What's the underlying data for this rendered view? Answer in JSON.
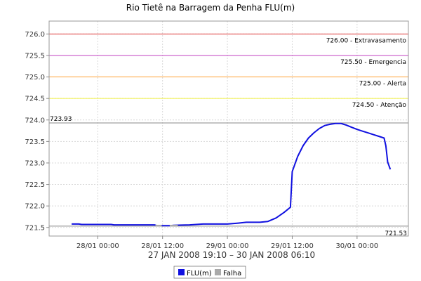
{
  "chart_data": {
    "type": "line",
    "title": "Rio Tietê na Barragem da Penha FLU(m)",
    "subtitle": "27 JAN 2008 19:10 – 30 JAN 2008 06:10",
    "ylim": [
      721.3,
      726.3
    ],
    "yticks": [
      721.5,
      722.0,
      722.5,
      723.0,
      723.5,
      724.0,
      724.5,
      725.0,
      725.5,
      726.0
    ],
    "ytick_labels": [
      "721.5",
      "722.0",
      "722.5",
      "723.0",
      "723.5",
      "724.0",
      "724.5",
      "725.0",
      "725.5",
      "726.0"
    ],
    "xlim": [
      "2008-01-27 15:00",
      "2008-01-30 09:30"
    ],
    "xticks": [
      "2008-01-28 00:00",
      "2008-01-28 12:00",
      "2008-01-29 00:00",
      "2008-01-29 12:00",
      "2008-01-30 00:00"
    ],
    "xtick_labels": [
      "28/01 00:00",
      "28/01 12:00",
      "29/01 00:00",
      "29/01 12:00",
      "30/01 00:00"
    ],
    "grid": true,
    "legend_position": "bottom",
    "reference_lines": [
      {
        "value": 726.0,
        "label": "726.00 - Extravasamento",
        "color": "#e03c3c"
      },
      {
        "value": 725.5,
        "label": "725.50 - Emergencia",
        "color": "#c040c0"
      },
      {
        "value": 725.0,
        "label": "725.00 - Alerta",
        "color": "#ffa030"
      },
      {
        "value": 724.5,
        "label": "724.50 - Atenção",
        "color": "#f0f040"
      }
    ],
    "markers": {
      "max_value": 723.93,
      "max_label": "723.93",
      "min_value": 721.53,
      "min_label": "721.53",
      "color": "#888888"
    },
    "series": [
      {
        "name": "FLU(m)",
        "color": "#1010e0",
        "points": [
          [
            "2008-01-27 19:10",
            721.58
          ],
          [
            "2008-01-27 20:30",
            721.58
          ],
          [
            "2008-01-27 21:00",
            721.57
          ],
          [
            "2008-01-28 02:30",
            721.57
          ],
          [
            "2008-01-28 03:00",
            721.56
          ],
          [
            "2008-01-28 10:30",
            721.56
          ],
          [
            "2008-01-28 11:00",
            721.54
          ],
          [
            "2008-01-28 12:00",
            721.54
          ],
          [
            "2008-01-28 13:30",
            721.54
          ],
          [
            "2008-01-28 14:00",
            721.55
          ],
          [
            "2008-01-28 17:00",
            721.56
          ],
          [
            "2008-01-28 19:30",
            721.58
          ],
          [
            "2008-01-29 00:00",
            721.58
          ],
          [
            "2008-01-29 02:00",
            721.6
          ],
          [
            "2008-01-29 03:30",
            721.62
          ],
          [
            "2008-01-29 06:00",
            721.62
          ],
          [
            "2008-01-29 07:30",
            721.64
          ],
          [
            "2008-01-29 09:00",
            721.72
          ],
          [
            "2008-01-29 10:30",
            721.85
          ],
          [
            "2008-01-29 11:40",
            721.97
          ],
          [
            "2008-01-29 12:00",
            722.8
          ],
          [
            "2008-01-29 13:00",
            723.15
          ],
          [
            "2008-01-29 14:00",
            723.4
          ],
          [
            "2008-01-29 15:00",
            723.58
          ],
          [
            "2008-01-29 16:00",
            723.7
          ],
          [
            "2008-01-29 17:00",
            723.8
          ],
          [
            "2008-01-29 18:00",
            723.87
          ],
          [
            "2008-01-29 19:00",
            723.9
          ],
          [
            "2008-01-29 20:00",
            723.92
          ],
          [
            "2008-01-29 21:00",
            723.92
          ],
          [
            "2008-01-29 22:00",
            723.88
          ],
          [
            "2008-01-29 23:00",
            723.83
          ],
          [
            "2008-01-30 00:00",
            723.78
          ],
          [
            "2008-01-30 01:00",
            723.74
          ],
          [
            "2008-01-30 02:00",
            723.7
          ],
          [
            "2008-01-30 03:00",
            723.66
          ],
          [
            "2008-01-30 04:00",
            723.62
          ],
          [
            "2008-01-30 05:00",
            723.58
          ],
          [
            "2008-01-30 05:20",
            723.4
          ],
          [
            "2008-01-30 05:40",
            723.02
          ],
          [
            "2008-01-30 06:10",
            722.85
          ]
        ]
      },
      {
        "name": "Falha",
        "color": "#aaaaaa",
        "segments": [
          [
            [
              "2008-01-28 10:40",
              721.54
            ],
            [
              "2008-01-28 11:50",
              721.54
            ]
          ],
          [
            [
              "2008-01-28 13:20",
              721.54
            ],
            [
              "2008-01-28 14:50",
              721.54
            ]
          ]
        ]
      }
    ]
  }
}
